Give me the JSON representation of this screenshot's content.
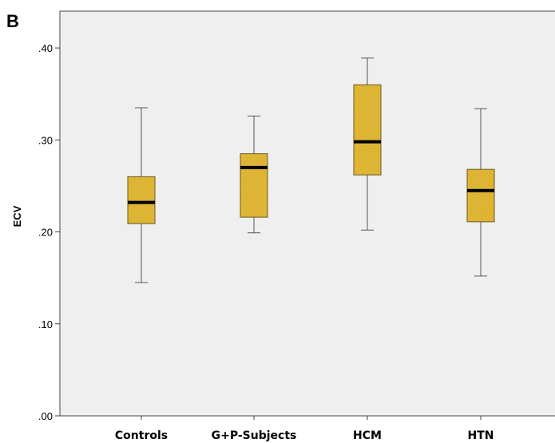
{
  "panel_label": "B",
  "chart_data": {
    "type": "boxplot",
    "title": "",
    "xlabel": "",
    "ylabel": "ECV",
    "ylim": [
      0.0,
      0.44
    ],
    "y_ticks": [
      0.0,
      0.1,
      0.2,
      0.3,
      0.4
    ],
    "y_tick_labels": [
      ".00",
      ".10",
      ".20",
      ".30",
      ".40"
    ],
    "categories": [
      "Controls",
      "G+P-Subjects",
      "HCM",
      "HTN"
    ],
    "boxes": [
      {
        "category": "Controls",
        "min": 0.145,
        "q1": 0.209,
        "median": 0.232,
        "q3": 0.26,
        "max": 0.335
      },
      {
        "category": "G+P-Subjects",
        "min": 0.199,
        "q1": 0.216,
        "median": 0.27,
        "q3": 0.285,
        "max": 0.326
      },
      {
        "category": "HCM",
        "min": 0.202,
        "q1": 0.262,
        "median": 0.298,
        "q3": 0.36,
        "max": 0.389
      },
      {
        "category": "HTN",
        "min": 0.152,
        "q1": 0.211,
        "median": 0.245,
        "q3": 0.268,
        "max": 0.334
      }
    ],
    "grid": false,
    "box_color": "#e3bb37",
    "box_edge_color": "#6b5a1e",
    "median_color": "#000000",
    "plot_background": "#efefef"
  }
}
